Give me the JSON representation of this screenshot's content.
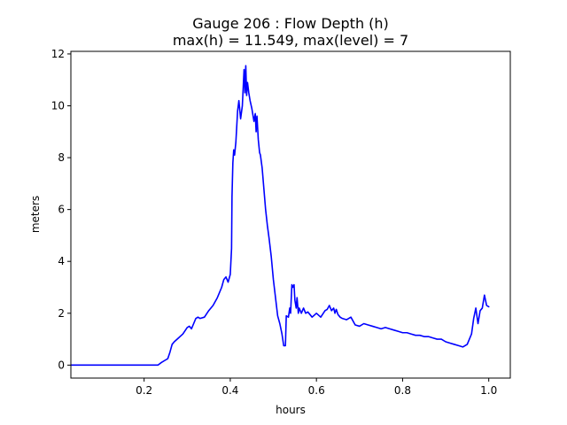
{
  "chart_data": {
    "type": "line",
    "title": "Gauge 206 : Flow Depth (h)",
    "subtitle": "max(h) =  11.549,    max(level) = 7",
    "xlabel": "hours",
    "ylabel": "meters",
    "xlim": [
      0.03,
      1.05
    ],
    "ylim": [
      -0.5,
      12.1
    ],
    "xticks": [
      0.2,
      0.4,
      0.6,
      0.8,
      1.0
    ],
    "xtick_labels": [
      "0.2",
      "0.4",
      "0.6",
      "0.8",
      "1.0"
    ],
    "yticks": [
      0,
      2,
      4,
      6,
      8,
      10,
      12
    ],
    "ytick_labels": [
      "0",
      "2",
      "4",
      "6",
      "8",
      "10",
      "12"
    ],
    "grid": false,
    "series": [
      {
        "color": "#0000ff",
        "x": [
          0.03,
          0.1,
          0.2,
          0.232,
          0.24,
          0.25,
          0.255,
          0.26,
          0.265,
          0.27,
          0.28,
          0.29,
          0.3,
          0.305,
          0.31,
          0.315,
          0.32,
          0.325,
          0.33,
          0.34,
          0.35,
          0.36,
          0.37,
          0.38,
          0.385,
          0.39,
          0.395,
          0.4,
          0.403,
          0.404,
          0.406,
          0.408,
          0.41,
          0.413,
          0.417,
          0.42,
          0.424,
          0.428,
          0.432,
          0.434,
          0.436,
          0.438,
          0.44,
          0.443,
          0.446,
          0.45,
          0.455,
          0.458,
          0.46,
          0.462,
          0.465,
          0.468,
          0.47,
          0.474,
          0.478,
          0.482,
          0.486,
          0.49,
          0.495,
          0.5,
          0.505,
          0.51,
          0.515,
          0.52,
          0.524,
          0.528,
          0.53,
          0.535,
          0.538,
          0.54,
          0.543,
          0.545,
          0.548,
          0.55,
          0.553,
          0.555,
          0.558,
          0.56,
          0.565,
          0.57,
          0.575,
          0.58,
          0.59,
          0.6,
          0.61,
          0.62,
          0.625,
          0.63,
          0.635,
          0.64,
          0.643,
          0.646,
          0.65,
          0.655,
          0.66,
          0.67,
          0.68,
          0.69,
          0.7,
          0.71,
          0.72,
          0.73,
          0.74,
          0.75,
          0.76,
          0.77,
          0.78,
          0.79,
          0.8,
          0.81,
          0.82,
          0.83,
          0.84,
          0.85,
          0.86,
          0.87,
          0.88,
          0.89,
          0.9,
          0.91,
          0.92,
          0.93,
          0.94,
          0.95,
          0.96,
          0.965,
          0.97,
          0.975,
          0.98,
          0.985,
          0.99,
          0.995,
          1.0
        ],
        "y": [
          0.0,
          0.0,
          0.0,
          0.0,
          0.1,
          0.2,
          0.25,
          0.5,
          0.8,
          0.9,
          1.05,
          1.2,
          1.45,
          1.5,
          1.4,
          1.6,
          1.8,
          1.85,
          1.8,
          1.85,
          2.1,
          2.3,
          2.6,
          3.0,
          3.3,
          3.4,
          3.2,
          3.5,
          4.5,
          6.5,
          7.8,
          8.3,
          8.1,
          8.6,
          9.8,
          10.2,
          9.5,
          10.0,
          11.4,
          10.5,
          11.549,
          10.4,
          10.9,
          10.5,
          10.2,
          9.9,
          9.4,
          9.7,
          9.0,
          9.6,
          8.7,
          8.2,
          8.1,
          7.6,
          6.8,
          6.0,
          5.4,
          4.9,
          4.2,
          3.3,
          2.6,
          1.9,
          1.6,
          1.2,
          0.75,
          0.75,
          1.9,
          1.85,
          2.2,
          2.0,
          3.1,
          3.0,
          3.1,
          2.5,
          2.2,
          2.6,
          2.0,
          2.2,
          2.0,
          2.2,
          2.0,
          2.05,
          1.85,
          2.0,
          1.85,
          2.1,
          2.15,
          2.3,
          2.1,
          2.2,
          2.0,
          2.15,
          1.95,
          1.85,
          1.8,
          1.75,
          1.85,
          1.55,
          1.5,
          1.6,
          1.55,
          1.5,
          1.45,
          1.4,
          1.45,
          1.4,
          1.35,
          1.3,
          1.25,
          1.25,
          1.2,
          1.15,
          1.15,
          1.1,
          1.1,
          1.05,
          1.0,
          1.0,
          0.9,
          0.85,
          0.8,
          0.75,
          0.7,
          0.8,
          1.2,
          1.8,
          2.2,
          1.6,
          2.1,
          2.2,
          2.7,
          2.3,
          2.25
        ]
      }
    ]
  }
}
